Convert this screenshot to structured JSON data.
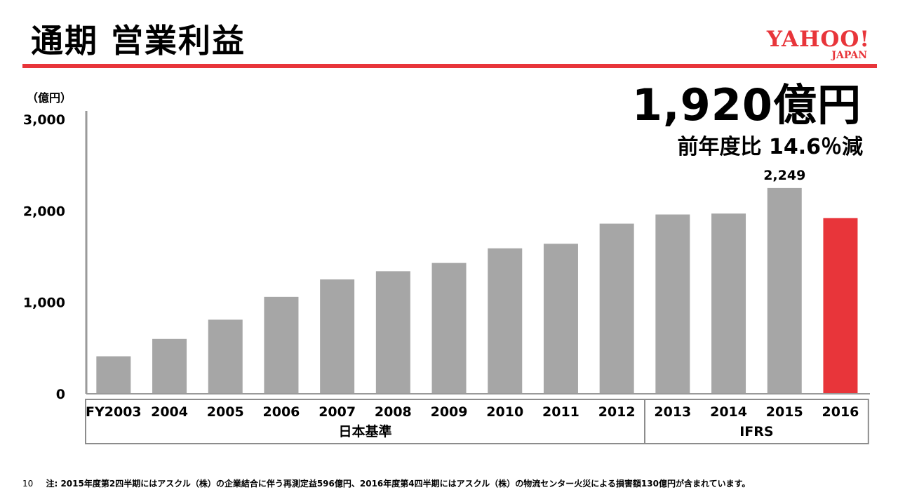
{
  "header": {
    "title": "通期 営業利益",
    "logo_main": "YAHOO!",
    "logo_sub": "JAPAN"
  },
  "colors": {
    "accent_red": "#e8353a",
    "bar_gray": "#a6a6a6",
    "axis_gray": "#9a9a9a"
  },
  "highlight": {
    "value_text": "1,920億円",
    "change_text": "前年度比 14.6％減"
  },
  "footer": {
    "page_number": "10",
    "note": "注: 2015年度第2四半期にはアスクル（株）の企業結合に伴う再測定益596億円、2016年度第4四半期にはアスクル（株）の物流センター火災による損害額130億円が含まれています。"
  },
  "chart_data": {
    "type": "bar",
    "unit_label": "（億円）",
    "categories": [
      "FY2003",
      "2004",
      "2005",
      "2006",
      "2007",
      "2008",
      "2009",
      "2010",
      "2011",
      "2012",
      "2013",
      "2014",
      "2015",
      "2016"
    ],
    "values": [
      410,
      600,
      810,
      1060,
      1250,
      1340,
      1430,
      1590,
      1640,
      1860,
      1960,
      1970,
      2249,
      1920
    ],
    "highlight_index": 13,
    "data_labels": [
      {
        "index": 12,
        "text": "2,249"
      }
    ],
    "yticks": [
      0,
      1000,
      2000,
      3000
    ],
    "ytick_labels": [
      "0",
      "1,000",
      "2,000",
      "3,000"
    ],
    "ylim": [
      0,
      3000
    ],
    "groups": [
      {
        "label": "日本基準",
        "from": 0,
        "to": 9
      },
      {
        "label": "IFRS",
        "from": 10,
        "to": 13
      }
    ],
    "grid": false
  }
}
